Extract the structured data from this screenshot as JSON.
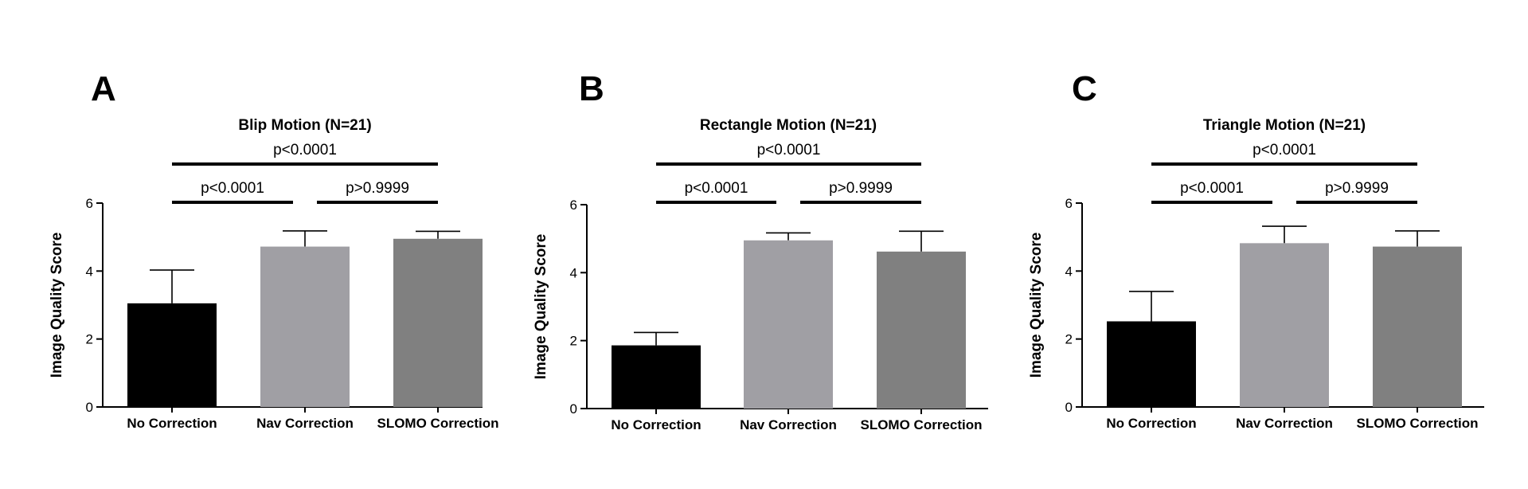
{
  "colors": {
    "no_correction": "#000000",
    "nav_correction": "#a09fa4",
    "slomo_correction": "#808080",
    "axis": "#000000"
  },
  "chart_data": [
    {
      "type": "bar",
      "panel_label": "A",
      "title": "Blip Motion (N=21)",
      "ylabel": "Image Quality Score",
      "xlabel": "",
      "ylim": [
        0,
        6
      ],
      "yticks": [
        "0",
        "2",
        "4",
        "6"
      ],
      "categories": [
        "No Correction",
        "Nav Correction",
        "SLOMO Correction"
      ],
      "values": [
        3.05,
        4.72,
        4.95
      ],
      "errors": [
        0.98,
        0.46,
        0.22
      ],
      "comparisons": [
        {
          "from": 0,
          "to": 2,
          "label": "p<0.0001"
        },
        {
          "from": 0,
          "to": 1,
          "label": "p<0.0001"
        },
        {
          "from": 1,
          "to": 2,
          "label": "p>0.9999"
        }
      ]
    },
    {
      "type": "bar",
      "panel_label": "B",
      "title": "Rectangle Motion (N=21)",
      "ylabel": "Image Quality Score",
      "xlabel": "",
      "ylim": [
        0,
        6
      ],
      "yticks": [
        "0",
        "2",
        "4",
        "6"
      ],
      "categories": [
        "No Correction",
        "Nav Correction",
        "SLOMO Correction"
      ],
      "values": [
        1.86,
        4.95,
        4.62
      ],
      "errors": [
        0.38,
        0.22,
        0.6
      ],
      "comparisons": [
        {
          "from": 0,
          "to": 2,
          "label": "p<0.0001"
        },
        {
          "from": 0,
          "to": 1,
          "label": "p<0.0001"
        },
        {
          "from": 1,
          "to": 2,
          "label": "p>0.9999"
        }
      ]
    },
    {
      "type": "bar",
      "panel_label": "C",
      "title": "Triangle Motion (N=21)",
      "ylabel": "Image Quality Score",
      "xlabel": "",
      "ylim": [
        0,
        6
      ],
      "yticks": [
        "0",
        "2",
        "4",
        "6"
      ],
      "categories": [
        "No Correction",
        "Nav Correction",
        "SLOMO Correction"
      ],
      "values": [
        2.52,
        4.82,
        4.72
      ],
      "errors": [
        0.88,
        0.5,
        0.46
      ],
      "comparisons": [
        {
          "from": 0,
          "to": 2,
          "label": "p<0.0001"
        },
        {
          "from": 0,
          "to": 1,
          "label": "p<0.0001"
        },
        {
          "from": 1,
          "to": 2,
          "label": "p>0.9999"
        }
      ]
    }
  ]
}
